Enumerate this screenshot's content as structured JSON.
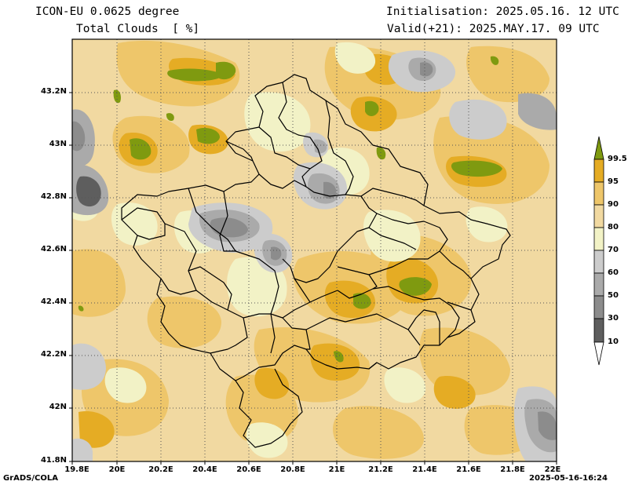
{
  "header": {
    "model_line": "ICON-EU 0.0625 degree",
    "field_line": "Total Clouds  [ %]",
    "init_line": "Initialisation: 2025.05.16. 12 UTC",
    "valid_line": "Valid(+21): 2025.MAY.17. 09 UTC"
  },
  "footer": {
    "software": "GrADS/COLA",
    "timestamp": "2025-05-16-16:24"
  },
  "map": {
    "lat_labels": [
      "43.2N",
      "43N",
      "42.8N",
      "42.6N",
      "42.4N",
      "42.2N",
      "42N",
      "41.8N"
    ],
    "lon_labels": [
      "19.8E",
      "20E",
      "20.2E",
      "20.4E",
      "20.6E",
      "20.8E",
      "21E",
      "21.2E",
      "21.4E",
      "21.6E",
      "21.8E",
      "22E"
    ],
    "lon_range": [
      19.8,
      22.0
    ],
    "lat_range": [
      41.8,
      43.4
    ],
    "grid_lines": "dotted every 0.2 degree"
  },
  "colorbar": {
    "labels": [
      "99.5",
      "95",
      "90",
      "80",
      "70",
      "60",
      "50",
      "30",
      "10"
    ],
    "colors": [
      "#7f9a10",
      "#e5ac24",
      "#eec66a",
      "#f1d9a1",
      "#f2f2c6",
      "#cccccc",
      "#aaaaaa",
      "#8c8c8c",
      "#5e5e5e",
      "#ffffff"
    ]
  }
}
